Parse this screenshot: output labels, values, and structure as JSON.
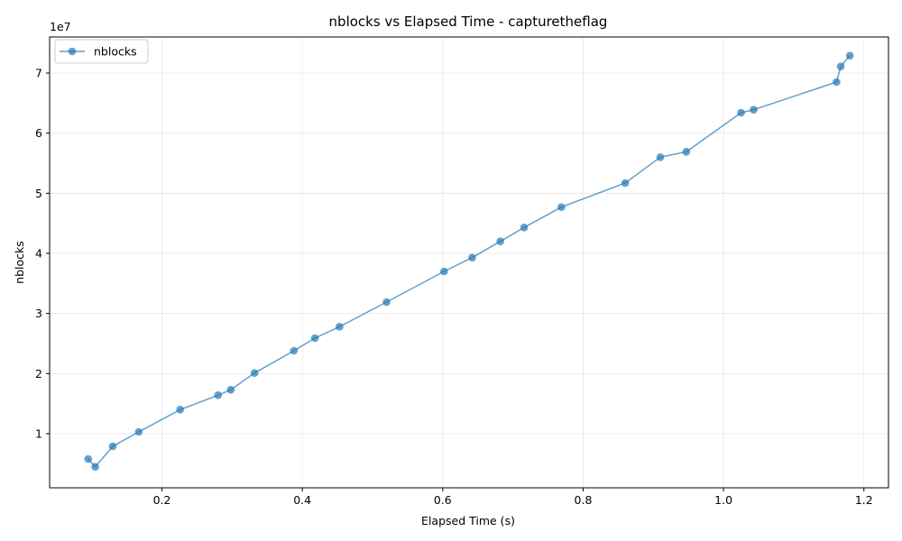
{
  "chart_data": {
    "type": "line",
    "title": "nblocks vs Elapsed Time - capturetheflag",
    "xlabel": "Elapsed Time (s)",
    "ylabel": "nblocks",
    "y_offset_label": "1e7",
    "xlim": [
      0.04,
      1.235
    ],
    "ylim": [
      1000000,
      76000000
    ],
    "x_ticks": [
      0.2,
      0.4,
      0.6,
      0.8,
      1.0,
      1.2
    ],
    "x_tick_labels": [
      "0.2",
      "0.4",
      "0.6",
      "0.8",
      "1.0",
      "1.2"
    ],
    "y_ticks": [
      10000000,
      20000000,
      30000000,
      40000000,
      50000000,
      60000000,
      70000000
    ],
    "y_tick_labels": [
      "1",
      "2",
      "3",
      "4",
      "5",
      "6",
      "7"
    ],
    "grid": true,
    "legend_position": "top-left",
    "series": [
      {
        "name": "nblocks",
        "color": "#1f77b4",
        "marker": "circle",
        "points": [
          [
            0.095,
            5800000
          ],
          [
            0.105,
            4500000
          ],
          [
            0.13,
            7900000
          ],
          [
            0.167,
            10300000
          ],
          [
            0.226,
            14000000
          ],
          [
            0.28,
            16400000
          ],
          [
            0.298,
            17300000
          ],
          [
            0.332,
            20100000
          ],
          [
            0.388,
            23800000
          ],
          [
            0.418,
            25900000
          ],
          [
            0.453,
            27800000
          ],
          [
            0.52,
            31900000
          ],
          [
            0.602,
            37000000
          ],
          [
            0.642,
            39300000
          ],
          [
            0.682,
            42000000
          ],
          [
            0.716,
            44300000
          ],
          [
            0.769,
            47700000
          ],
          [
            0.86,
            51700000
          ],
          [
            0.91,
            56000000
          ],
          [
            0.947,
            56900000
          ],
          [
            1.025,
            63400000
          ],
          [
            1.043,
            63900000
          ],
          [
            1.161,
            68500000
          ],
          [
            1.167,
            71100000
          ],
          [
            1.18,
            72900000
          ]
        ]
      }
    ]
  }
}
